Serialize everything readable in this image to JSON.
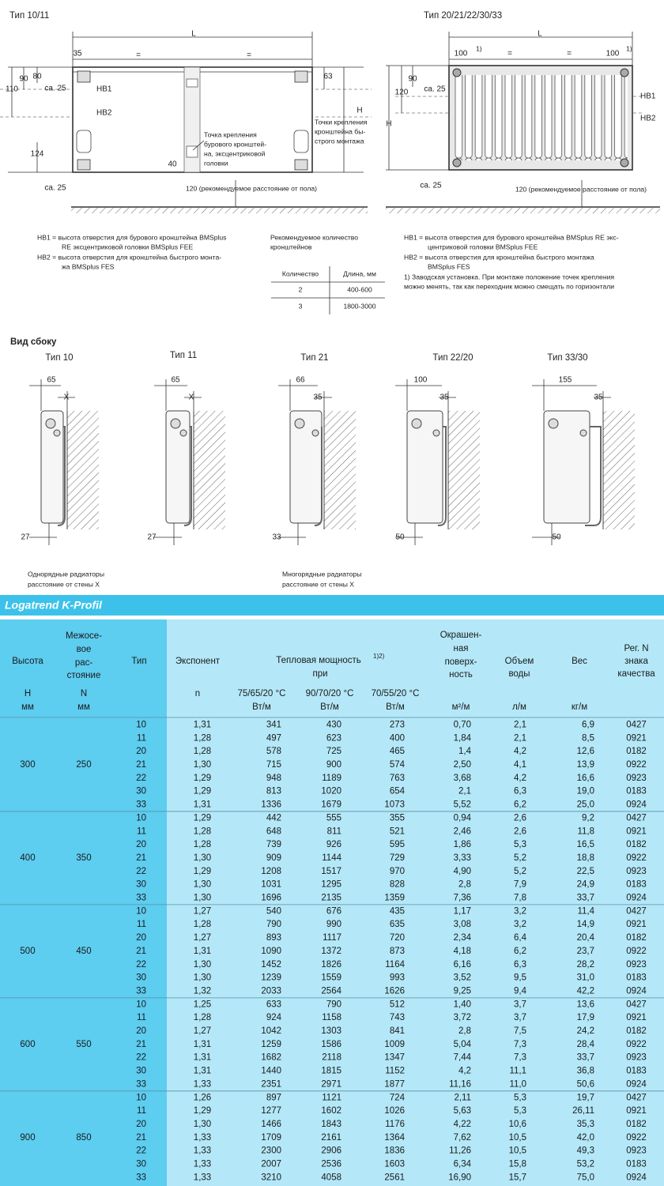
{
  "drawings": {
    "left": {
      "title": "Тип 10/11",
      "labels": [
        "L",
        "35",
        "=",
        "=",
        "90",
        "80",
        "110",
        "ca. 25",
        "HB1",
        "HB2",
        "63",
        "H",
        "124",
        "40",
        "ca. 25",
        "120 (рекомендуемое расстояние от пола)"
      ],
      "callout": [
        "Точка крепления",
        "бурового кронштей-",
        "на, эксцентриковой",
        "головки"
      ],
      "callout2": [
        "Точки крепления",
        "кронштейна бы-",
        "строго монтажа"
      ]
    },
    "right": {
      "title": "Тип 20/21/22/30/33",
      "labels": [
        "L",
        "100",
        "1)",
        "=",
        "=",
        "100",
        "1)",
        "90",
        "120",
        "ca. 25",
        "HB1",
        "HB2",
        "H",
        "ca. 25",
        "120 (рекомендуемое расстояние от пола)"
      ]
    }
  },
  "notes": {
    "left": [
      "HB1 = высота отверстия для бурового кронштейна BMSplus",
      "RE эксцентриковой головки BMSplus FEE",
      "HB2 = высота отверстия для кронштейна быстрого монта-",
      "жа BMSplus FES"
    ],
    "right": [
      "HB1 = высота отверстия для бурового кронштейна BMSplus RE экс-",
      "центриковой головки BMSplus FEE",
      "HB2 = высота отверстия для кронштейна быстрого монтажа",
      "BMSplus FES",
      "1) Заводская установка. При монтаже положение точек крепления",
      "можно менять, так как переходник можно смещать по горизонтали"
    ]
  },
  "brackets": {
    "title": [
      "Рекомендуемое количество",
      "кронштейнов"
    ],
    "header": [
      "Количество",
      "Длина, мм"
    ],
    "rows": [
      [
        "2",
        "400-600"
      ],
      [
        "3",
        "1800-3000"
      ]
    ]
  },
  "side_view": {
    "title": "Вид сбоку",
    "panels": [
      {
        "title": "Тип 10",
        "width": "65",
        "gap": "X",
        "bottom": "27"
      },
      {
        "title": "Тип 11",
        "width": "65",
        "gap": "X",
        "bottom": "27"
      },
      {
        "title": "Тип 21",
        "width": "66",
        "gap": "35",
        "bottom": "33"
      },
      {
        "title": "Тип 22/20",
        "width": "100",
        "gap": "35",
        "bottom": "50"
      },
      {
        "title": "Тип 33/30",
        "width": "155",
        "gap": "35",
        "bottom": "50"
      }
    ],
    "captions": [
      [
        "Однорядные радиаторы",
        "расстояние от стены X"
      ],
      [
        "Многорядные радиаторы",
        "расстояние от стены X"
      ]
    ]
  },
  "table": {
    "title": "Logatrend K-Profil",
    "headers": {
      "height": "Высота",
      "axis": [
        "Межосе-",
        "вое",
        "рас-",
        "стояние"
      ],
      "type": "Тип",
      "exponent": "Экспонент",
      "power": "Тепловая мощность",
      "power_note": "1)2)",
      "power_sub": "при",
      "area": [
        "Окрашен-",
        "ная",
        "поверх-",
        "ность"
      ],
      "volume": [
        "Объем",
        "воды"
      ],
      "weight": "Вес",
      "reg": [
        "Рег. N",
        "знака",
        "качества"
      ]
    },
    "units": {
      "height": [
        "H",
        "мм"
      ],
      "axis": [
        "N",
        "мм"
      ],
      "exponent": "n",
      "p1": [
        "75/65/20 °C",
        "Вт/м"
      ],
      "p2": [
        "90/70/20 °C",
        "Вт/м"
      ],
      "p3": [
        "70/55/20 °C",
        "Вт/м"
      ],
      "area": "м²/м",
      "volume": "л/м",
      "weight": "кг/м"
    },
    "groups": [
      {
        "height": "300",
        "axis": "250",
        "rows": [
          [
            "10",
            "1,31",
            "341",
            "430",
            "273",
            "0,70",
            "2,1",
            "6,9",
            "0427"
          ],
          [
            "11",
            "1,28",
            "497",
            "623",
            "400",
            "1,84",
            "2,1",
            "8,5",
            "0921"
          ],
          [
            "20",
            "1,28",
            "578",
            "725",
            "465",
            "1,4",
            "4,2",
            "12,6",
            "0182"
          ],
          [
            "21",
            "1,30",
            "715",
            "900",
            "574",
            "2,50",
            "4,1",
            "13,9",
            "0922"
          ],
          [
            "22",
            "1,29",
            "948",
            "1189",
            "763",
            "3,68",
            "4,2",
            "16,6",
            "0923"
          ],
          [
            "30",
            "1,29",
            "813",
            "1020",
            "654",
            "2,1",
            "6,3",
            "19,0",
            "0183"
          ],
          [
            "33",
            "1,31",
            "1336",
            "1679",
            "1073",
            "5,52",
            "6,2",
            "25,0",
            "0924"
          ]
        ]
      },
      {
        "height": "400",
        "axis": "350",
        "rows": [
          [
            "10",
            "1,29",
            "442",
            "555",
            "355",
            "0,94",
            "2,6",
            "9,2",
            "0427"
          ],
          [
            "11",
            "1,28",
            "648",
            "811",
            "521",
            "2,46",
            "2,6",
            "11,8",
            "0921"
          ],
          [
            "20",
            "1,28",
            "739",
            "926",
            "595",
            "1,86",
            "5,3",
            "16,5",
            "0182"
          ],
          [
            "21",
            "1,30",
            "909",
            "1144",
            "729",
            "3,33",
            "5,2",
            "18,8",
            "0922"
          ],
          [
            "22",
            "1,29",
            "1208",
            "1517",
            "970",
            "4,90",
            "5,2",
            "22,5",
            "0923"
          ],
          [
            "30",
            "1,30",
            "1031",
            "1295",
            "828",
            "2,8",
            "7,9",
            "24,9",
            "0183"
          ],
          [
            "33",
            "1,30",
            "1696",
            "2135",
            "1359",
            "7,36",
            "7,8",
            "33,7",
            "0924"
          ]
        ]
      },
      {
        "height": "500",
        "axis": "450",
        "rows": [
          [
            "10",
            "1,27",
            "540",
            "676",
            "435",
            "1,17",
            "3,2",
            "11,4",
            "0427"
          ],
          [
            "11",
            "1,28",
            "790",
            "990",
            "635",
            "3,08",
            "3,2",
            "14,9",
            "0921"
          ],
          [
            "20",
            "1,27",
            "893",
            "1117",
            "720",
            "2,34",
            "6,4",
            "20,4",
            "0182"
          ],
          [
            "21",
            "1,31",
            "1090",
            "1372",
            "873",
            "4,18",
            "6,2",
            "23,7",
            "0922"
          ],
          [
            "22",
            "1,30",
            "1452",
            "1826",
            "1164",
            "6,16",
            "6,3",
            "28,2",
            "0923"
          ],
          [
            "30",
            "1,30",
            "1239",
            "1559",
            "993",
            "3,52",
            "9,5",
            "31,0",
            "0183"
          ],
          [
            "33",
            "1,32",
            "2033",
            "2564",
            "1626",
            "9,25",
            "9,4",
            "42,2",
            "0924"
          ]
        ]
      },
      {
        "height": "600",
        "axis": "550",
        "rows": [
          [
            "10",
            "1,25",
            "633",
            "790",
            "512",
            "1,40",
            "3,7",
            "13,6",
            "0427"
          ],
          [
            "11",
            "1,28",
            "924",
            "1158",
            "743",
            "3,72",
            "3,7",
            "17,9",
            "0921"
          ],
          [
            "20",
            "1,27",
            "1042",
            "1303",
            "841",
            "2,8",
            "7,5",
            "24,2",
            "0182"
          ],
          [
            "21",
            "1,31",
            "1259",
            "1586",
            "1009",
            "5,04",
            "7,3",
            "28,4",
            "0922"
          ],
          [
            "22",
            "1,31",
            "1682",
            "2118",
            "1347",
            "7,44",
            "7,3",
            "33,7",
            "0923"
          ],
          [
            "30",
            "1,31",
            "1440",
            "1815",
            "1152",
            "4,2",
            "11,1",
            "36,8",
            "0183"
          ],
          [
            "33",
            "1,33",
            "2351",
            "2971",
            "1877",
            "11,16",
            "11,0",
            "50,6",
            "0924"
          ]
        ]
      },
      {
        "height": "900",
        "axis": "850",
        "rows": [
          [
            "10",
            "1,26",
            "897",
            "1121",
            "724",
            "2,11",
            "5,3",
            "19,7",
            "0427"
          ],
          [
            "11",
            "1,29",
            "1277",
            "1602",
            "1026",
            "5,63",
            "5,3",
            "26,11",
            "0921"
          ],
          [
            "20",
            "1,30",
            "1466",
            "1843",
            "1176",
            "4,22",
            "10,6",
            "35,3",
            "0182"
          ],
          [
            "21",
            "1,33",
            "1709",
            "2161",
            "1364",
            "7,62",
            "10,5",
            "42,0",
            "0922"
          ],
          [
            "22",
            "1,33",
            "2300",
            "2906",
            "1836",
            "11,26",
            "10,5",
            "49,3",
            "0923"
          ],
          [
            "30",
            "1,33",
            "2007",
            "2536",
            "1603",
            "6,34",
            "15,8",
            "53,2",
            "0183"
          ],
          [
            "33",
            "1,33",
            "3210",
            "4058",
            "2561",
            "16,90",
            "15,7",
            "75,0",
            "0924"
          ]
        ]
      }
    ]
  }
}
